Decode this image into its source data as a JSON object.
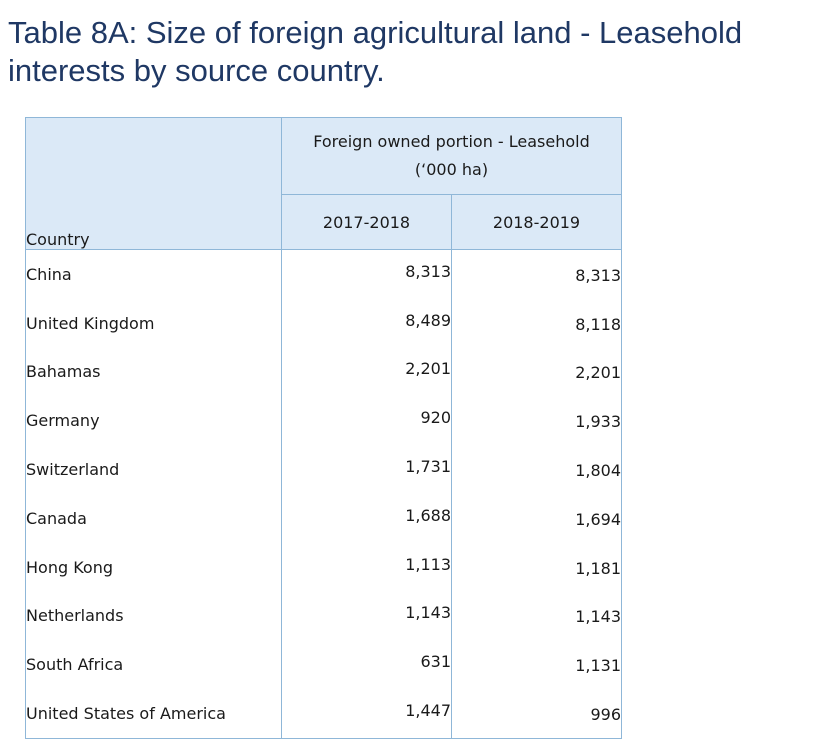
{
  "title": {
    "line1": "Table 8A: Size of foreign agricultural land - Leasehold",
    "line2": "interests by source country."
  },
  "table": {
    "country_header": "Country",
    "group_header_line1": "Foreign owned portion - Leasehold",
    "group_header_line2": "(‘000 ha)",
    "year_headers": [
      "2017-2018",
      "2018-2019"
    ],
    "rows": [
      {
        "country": "China",
        "v2017_2018": "8,313",
        "v2018_2019": "8,313"
      },
      {
        "country": "United Kingdom",
        "v2017_2018": "8,489",
        "v2018_2019": "8,118"
      },
      {
        "country": "Bahamas",
        "v2017_2018": "2,201",
        "v2018_2019": "2,201"
      },
      {
        "country": "Germany",
        "v2017_2018": "920",
        "v2018_2019": "1,933"
      },
      {
        "country": "Switzerland",
        "v2017_2018": "1,731",
        "v2018_2019": "1,804"
      },
      {
        "country": "Canada",
        "v2017_2018": "1,688",
        "v2018_2019": "1,694"
      },
      {
        "country": "Hong Kong",
        "v2017_2018": "1,113",
        "v2018_2019": "1,181"
      },
      {
        "country": "Netherlands",
        "v2017_2018": "1,143",
        "v2018_2019": "1,143"
      },
      {
        "country": "South Africa",
        "v2017_2018": "631",
        "v2018_2019": "1,131"
      },
      {
        "country": "United States of America",
        "v2017_2018": "1,447",
        "v2018_2019": "996"
      }
    ]
  },
  "colors": {
    "title": "#1f3864",
    "header_fill": "#dbe9f7",
    "border": "#8fb7d8"
  }
}
